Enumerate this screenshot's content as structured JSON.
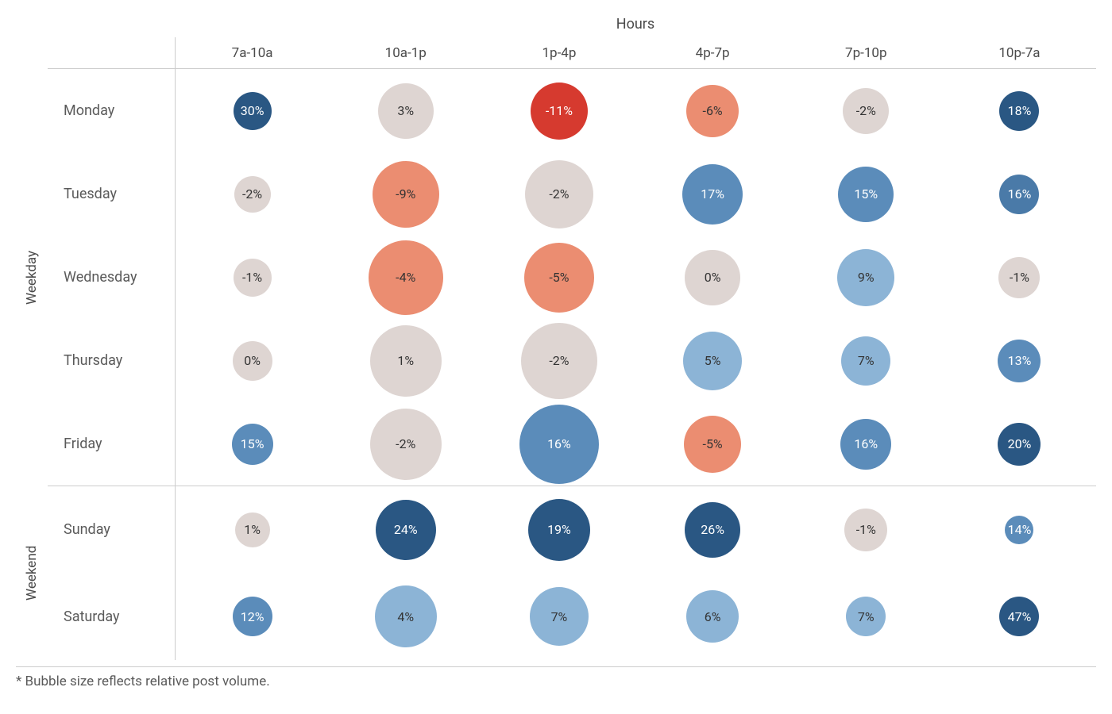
{
  "chart": {
    "type": "bubble-matrix",
    "title": "Hours",
    "footnote": "* Bubble size reflects relative post volume.",
    "columns": [
      "7a-10a",
      "10a-1p",
      "1p-4p",
      "4p-7p",
      "7p-10p",
      "10p-7a"
    ],
    "column_fontsize": 17,
    "row_label_fontsize": 18,
    "value_fontsize": 16,
    "group_label_fontsize": 17,
    "title_fontsize": 18,
    "footnote_fontsize": 17,
    "text_color": "#4a4a4a",
    "text_color_light": "#ffffff",
    "text_color_dark": "#333333",
    "border_color": "#cccccc",
    "background_color": "#ffffff",
    "row_height_weekday": 105,
    "row_height_weekend": 110,
    "groups": [
      {
        "label": "Weekday",
        "days": [
          "Monday",
          "Tuesday",
          "Wednesday",
          "Thursday",
          "Friday"
        ]
      },
      {
        "label": "Weekend",
        "days": [
          "Sunday",
          "Saturday"
        ]
      }
    ],
    "cells": {
      "Monday": [
        {
          "v": "30%",
          "d": 48,
          "c": "#2a5783"
        },
        {
          "v": "3%",
          "d": 70,
          "c": "#ded5d2"
        },
        {
          "v": "-11%",
          "d": 72,
          "c": "#d63a2f"
        },
        {
          "v": "-6%",
          "d": 66,
          "c": "#eb8d71"
        },
        {
          "v": "-2%",
          "d": 58,
          "c": "#ded5d2"
        },
        {
          "v": "18%",
          "d": 50,
          "c": "#2a5783"
        }
      ],
      "Tuesday": [
        {
          "v": "-2%",
          "d": 46,
          "c": "#ded5d2"
        },
        {
          "v": "-9%",
          "d": 84,
          "c": "#eb8d71"
        },
        {
          "v": "-2%",
          "d": 86,
          "c": "#ded5d2"
        },
        {
          "v": "17%",
          "d": 76,
          "c": "#5b8cba"
        },
        {
          "v": "15%",
          "d": 70,
          "c": "#5b8cba"
        },
        {
          "v": "16%",
          "d": 50,
          "c": "#4a7aa8"
        }
      ],
      "Wednesday": [
        {
          "v": "-1%",
          "d": 48,
          "c": "#ded5d2"
        },
        {
          "v": "-4%",
          "d": 94,
          "c": "#eb8d71"
        },
        {
          "v": "-5%",
          "d": 88,
          "c": "#eb8d71"
        },
        {
          "v": "0%",
          "d": 70,
          "c": "#ded5d2"
        },
        {
          "v": "9%",
          "d": 72,
          "c": "#8cb4d6"
        },
        {
          "v": "-1%",
          "d": 52,
          "c": "#ded5d2"
        }
      ],
      "Thursday": [
        {
          "v": "0%",
          "d": 50,
          "c": "#ded5d2"
        },
        {
          "v": "1%",
          "d": 90,
          "c": "#ded5d2"
        },
        {
          "v": "-2%",
          "d": 96,
          "c": "#ded5d2"
        },
        {
          "v": "5%",
          "d": 74,
          "c": "#8cb4d6"
        },
        {
          "v": "7%",
          "d": 62,
          "c": "#8cb4d6"
        },
        {
          "v": "13%",
          "d": 54,
          "c": "#5b8cba"
        }
      ],
      "Friday": [
        {
          "v": "15%",
          "d": 52,
          "c": "#5b8cba"
        },
        {
          "v": "-2%",
          "d": 90,
          "c": "#ded5d2"
        },
        {
          "v": "16%",
          "d": 100,
          "c": "#5b8cba"
        },
        {
          "v": "-5%",
          "d": 72,
          "c": "#eb8d71"
        },
        {
          "v": "16%",
          "d": 64,
          "c": "#5b8cba"
        },
        {
          "v": "20%",
          "d": 54,
          "c": "#2a5783"
        }
      ],
      "Sunday": [
        {
          "v": "1%",
          "d": 44,
          "c": "#ded5d2"
        },
        {
          "v": "24%",
          "d": 76,
          "c": "#2a5783"
        },
        {
          "v": "19%",
          "d": 78,
          "c": "#2a5783"
        },
        {
          "v": "26%",
          "d": 70,
          "c": "#2a5783"
        },
        {
          "v": "-1%",
          "d": 54,
          "c": "#ded5d2"
        },
        {
          "v": "14%",
          "d": 36,
          "c": "#5b8cba"
        }
      ],
      "Saturday": [
        {
          "v": "12%",
          "d": 50,
          "c": "#5b8cba"
        },
        {
          "v": "4%",
          "d": 78,
          "c": "#8cb4d6"
        },
        {
          "v": "7%",
          "d": 74,
          "c": "#8cb4d6"
        },
        {
          "v": "6%",
          "d": 66,
          "c": "#8cb4d6"
        },
        {
          "v": "7%",
          "d": 50,
          "c": "#8cb4d6"
        },
        {
          "v": "47%",
          "d": 50,
          "c": "#2a5783"
        }
      ]
    },
    "light_text_colors": [
      "#2a5783",
      "#d63a2f",
      "#4a7aa8",
      "#5b8cba"
    ]
  }
}
